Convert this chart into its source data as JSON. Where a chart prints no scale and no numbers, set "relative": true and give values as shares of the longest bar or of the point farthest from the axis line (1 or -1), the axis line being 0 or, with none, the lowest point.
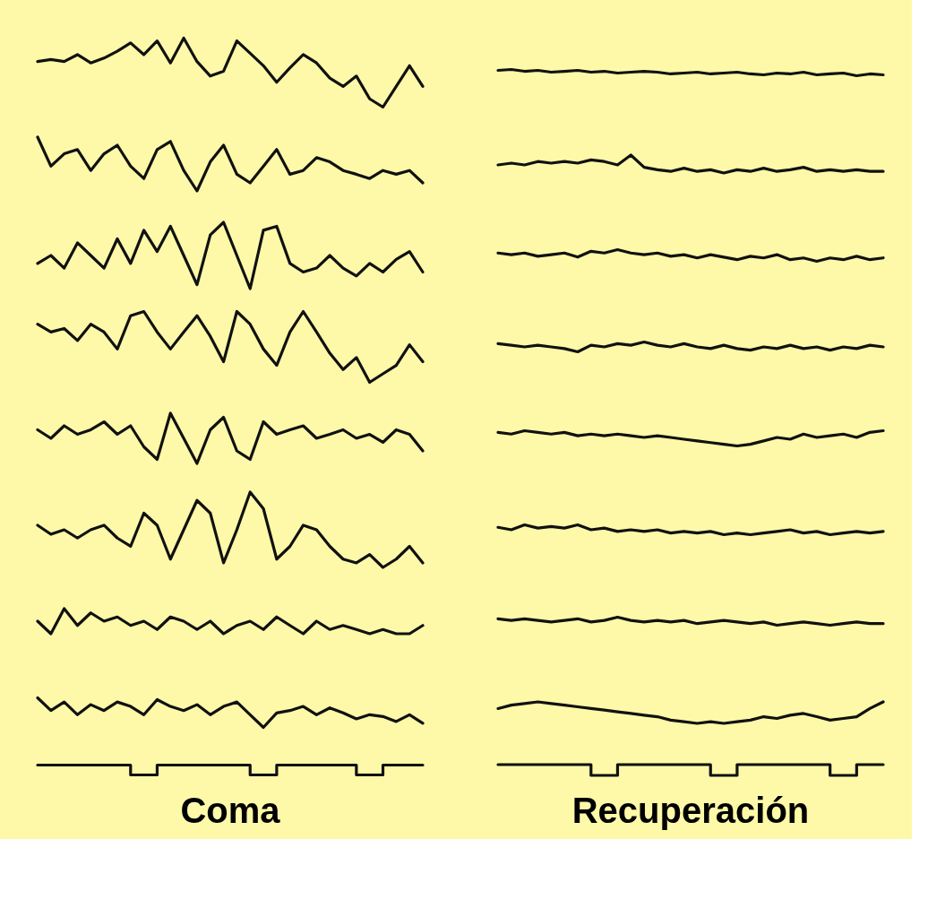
{
  "chart_data": [
    {
      "type": "line",
      "relative": true,
      "categories": [
        null,
        null,
        null,
        null,
        null,
        null,
        null,
        null,
        null,
        null,
        null,
        null,
        null,
        null,
        null,
        null,
        null,
        null,
        null,
        null,
        null,
        null,
        null,
        null,
        null,
        null,
        null,
        null,
        null,
        null
      ],
      "series": [
        {
          "color": "#111111",
          "values": [
            0.66,
            0.69,
            0.66,
            0.76,
            0.64,
            0.71,
            0.81,
            0.93,
            0.76,
            0.96,
            0.64,
            1,
            0.66,
            0.45,
            0.52,
            0.96,
            0.78,
            0.6,
            0.36,
            0.57,
            0.76,
            0.64,
            0.42,
            0.3,
            0.45,
            0.12,
            0,
            0.3,
            0.6,
            0.3
          ]
        }
      ]
    },
    {
      "type": "line",
      "relative": true,
      "categories": [
        null,
        null,
        null,
        null,
        null,
        null,
        null,
        null,
        null,
        null,
        null,
        null,
        null,
        null,
        null,
        null,
        null,
        null,
        null,
        null,
        null,
        null,
        null,
        null,
        null,
        null,
        null,
        null,
        null,
        null
      ],
      "series": [
        {
          "color": "#111111",
          "values": [
            1,
            0.46,
            0.69,
            0.77,
            0.38,
            0.69,
            0.85,
            0.46,
            0.23,
            0.77,
            0.92,
            0.38,
            0,
            0.54,
            0.85,
            0.31,
            0.15,
            0.46,
            0.77,
            0.31,
            0.38,
            0.62,
            0.54,
            0.38,
            0.31,
            0.23,
            0.38,
            0.31,
            0.38,
            0.15
          ]
        }
      ]
    },
    {
      "type": "line",
      "relative": true,
      "categories": [
        null,
        null,
        null,
        null,
        null,
        null,
        null,
        null,
        null,
        null,
        null,
        null,
        null,
        null,
        null,
        null,
        null,
        null,
        null,
        null,
        null,
        null,
        null,
        null,
        null,
        null,
        null,
        null,
        null,
        null
      ],
      "series": [
        {
          "color": "#111111",
          "values": [
            0.38,
            0.5,
            0.31,
            0.69,
            0.5,
            0.31,
            0.75,
            0.38,
            0.88,
            0.56,
            0.94,
            0.5,
            0.06,
            0.81,
            1,
            0.5,
            0,
            0.88,
            0.94,
            0.38,
            0.25,
            0.31,
            0.5,
            0.31,
            0.19,
            0.38,
            0.25,
            0.44,
            0.56,
            0.25
          ]
        }
      ]
    },
    {
      "type": "line",
      "relative": true,
      "categories": [
        null,
        null,
        null,
        null,
        null,
        null,
        null,
        null,
        null,
        null,
        null,
        null,
        null,
        null,
        null,
        null,
        null,
        null,
        null,
        null,
        null,
        null,
        null,
        null,
        null,
        null,
        null,
        null,
        null,
        null
      ],
      "series": [
        {
          "color": "#111111",
          "values": [
            0.82,
            0.71,
            0.76,
            0.59,
            0.82,
            0.71,
            0.47,
            0.94,
            1,
            0.71,
            0.47,
            0.71,
            0.94,
            0.65,
            0.29,
            1,
            0.82,
            0.47,
            0.24,
            0.71,
            1,
            0.71,
            0.41,
            0.18,
            0.35,
            0,
            0.12,
            0.24,
            0.53,
            0.29
          ]
        }
      ]
    },
    {
      "type": "line",
      "relative": true,
      "categories": [
        null,
        null,
        null,
        null,
        null,
        null,
        null,
        null,
        null,
        null,
        null,
        null,
        null,
        null,
        null,
        null,
        null,
        null,
        null,
        null,
        null,
        null,
        null,
        null,
        null,
        null,
        null,
        null,
        null,
        null
      ],
      "series": [
        {
          "color": "#111111",
          "values": [
            0.67,
            0.5,
            0.75,
            0.58,
            0.67,
            0.83,
            0.58,
            0.75,
            0.33,
            0.08,
            1,
            0.5,
            0,
            0.67,
            0.92,
            0.25,
            0.08,
            0.83,
            0.58,
            0.67,
            0.75,
            0.5,
            0.58,
            0.67,
            0.5,
            0.58,
            0.42,
            0.67,
            0.58,
            0.25
          ]
        }
      ]
    },
    {
      "type": "line",
      "relative": true,
      "categories": [
        null,
        null,
        null,
        null,
        null,
        null,
        null,
        null,
        null,
        null,
        null,
        null,
        null,
        null,
        null,
        null,
        null,
        null,
        null,
        null,
        null,
        null,
        null,
        null,
        null,
        null,
        null,
        null,
        null,
        null
      ],
      "series": [
        {
          "color": "#111111",
          "values": [
            0.56,
            0.44,
            0.5,
            0.39,
            0.5,
            0.56,
            0.39,
            0.28,
            0.72,
            0.56,
            0.11,
            0.5,
            0.89,
            0.72,
            0.06,
            0.5,
            1,
            0.78,
            0.11,
            0.28,
            0.56,
            0.5,
            0.28,
            0.11,
            0.06,
            0.17,
            0,
            0.11,
            0.28,
            0.06
          ]
        }
      ]
    },
    {
      "type": "line",
      "relative": true,
      "categories": [
        null,
        null,
        null,
        null,
        null,
        null,
        null,
        null,
        null,
        null,
        null,
        null,
        null,
        null,
        null,
        null,
        null,
        null,
        null,
        null,
        null,
        null,
        null,
        null,
        null,
        null,
        null,
        null,
        null,
        null
      ],
      "series": [
        {
          "color": "#111111",
          "values": [
            0.5,
            0,
            1,
            0.33,
            0.83,
            0.5,
            0.67,
            0.33,
            0.5,
            0.17,
            0.67,
            0.5,
            0.17,
            0.5,
            0,
            0.33,
            0.5,
            0.17,
            0.67,
            0.33,
            0,
            0.5,
            0.17,
            0.33,
            0.17,
            0,
            0.17,
            0,
            0,
            0.33
          ]
        }
      ]
    },
    {
      "type": "line",
      "relative": true,
      "categories": [
        null,
        null,
        null,
        null,
        null,
        null,
        null,
        null,
        null,
        null,
        null,
        null,
        null,
        null,
        null,
        null,
        null,
        null,
        null,
        null,
        null,
        null,
        null,
        null,
        null,
        null,
        null,
        null,
        null,
        null
      ],
      "series": [
        {
          "color": "#111111",
          "values": [
            1,
            0.57,
            0.86,
            0.43,
            0.77,
            0.57,
            0.86,
            0.71,
            0.43,
            0.94,
            0.71,
            0.57,
            0.77,
            0.43,
            0.71,
            0.86,
            0.43,
            0,
            0.49,
            0.57,
            0.71,
            0.43,
            0.66,
            0.49,
            0.29,
            0.43,
            0.37,
            0.2,
            0.43,
            0.14
          ]
        }
      ]
    },
    {
      "type": "step",
      "relative": true,
      "xlabel": "Coma",
      "categories": [
        null,
        null,
        null,
        null,
        null,
        null,
        null,
        null,
        null,
        null,
        null,
        null,
        null,
        null,
        null,
        null,
        null,
        null,
        null,
        null,
        null,
        null,
        null,
        null,
        null,
        null,
        null,
        null,
        null,
        null
      ],
      "series": [
        {
          "color": "#111111",
          "values": [
            1,
            1,
            1,
            1,
            1,
            1,
            1,
            0,
            0,
            1,
            1,
            1,
            1,
            1,
            1,
            1,
            0,
            0,
            1,
            1,
            1,
            1,
            1,
            1,
            0,
            0,
            1,
            1,
            1,
            1
          ]
        }
      ]
    },
    {
      "type": "line",
      "relative": true,
      "categories": [
        null,
        null,
        null,
        null,
        null,
        null,
        null,
        null,
        null,
        null,
        null,
        null,
        null,
        null,
        null,
        null,
        null,
        null,
        null,
        null,
        null,
        null,
        null,
        null,
        null,
        null,
        null,
        null,
        null,
        null
      ],
      "series": [
        {
          "color": "#111111",
          "values": [
            0.86,
            1,
            0.71,
            0.86,
            0.57,
            0.71,
            0.86,
            0.57,
            0.71,
            0.43,
            0.57,
            0.71,
            0.57,
            0.29,
            0.43,
            0.57,
            0.29,
            0.43,
            0.57,
            0.29,
            0.14,
            0.43,
            0.29,
            0.57,
            0.14,
            0.29,
            0.43,
            0,
            0.29,
            0.14
          ]
        }
      ]
    },
    {
      "type": "line",
      "relative": true,
      "categories": [
        null,
        null,
        null,
        null,
        null,
        null,
        null,
        null,
        null,
        null,
        null,
        null,
        null,
        null,
        null,
        null,
        null,
        null,
        null,
        null,
        null,
        null,
        null,
        null,
        null,
        null,
        null,
        null,
        null,
        null
      ],
      "series": [
        {
          "color": "#111111",
          "values": [
            0.45,
            0.55,
            0.45,
            0.64,
            0.55,
            0.64,
            0.55,
            0.73,
            0.64,
            0.45,
            1,
            0.32,
            0.18,
            0.09,
            0.27,
            0.09,
            0.18,
            0,
            0.18,
            0.09,
            0.27,
            0.09,
            0.18,
            0.32,
            0.09,
            0.18,
            0.09,
            0.18,
            0.09,
            0.09
          ]
        }
      ]
    },
    {
      "type": "line",
      "relative": true,
      "categories": [
        null,
        null,
        null,
        null,
        null,
        null,
        null,
        null,
        null,
        null,
        null,
        null,
        null,
        null,
        null,
        null,
        null,
        null,
        null,
        null,
        null,
        null,
        null,
        null,
        null,
        null,
        null,
        null,
        null,
        null
      ],
      "series": [
        {
          "color": "#111111",
          "values": [
            0.71,
            0.57,
            0.71,
            0.43,
            0.57,
            0.71,
            0.36,
            0.86,
            0.71,
            1,
            0.71,
            0.57,
            0.71,
            0.43,
            0.57,
            0.29,
            0.57,
            0.36,
            0.14,
            0.43,
            0.29,
            0.57,
            0.14,
            0.29,
            0,
            0.29,
            0.14,
            0.43,
            0.14,
            0.29
          ]
        }
      ]
    },
    {
      "type": "line",
      "relative": true,
      "categories": [
        null,
        null,
        null,
        null,
        null,
        null,
        null,
        null,
        null,
        null,
        null,
        null,
        null,
        null,
        null,
        null,
        null,
        null,
        null,
        null,
        null,
        null,
        null,
        null,
        null,
        null,
        null,
        null,
        null,
        null
      ],
      "series": [
        {
          "color": "#111111",
          "values": [
            0.83,
            0.67,
            0.5,
            0.67,
            0.5,
            0.33,
            0,
            0.67,
            0.5,
            0.83,
            0.67,
            1,
            0.67,
            0.5,
            0.83,
            0.5,
            0.33,
            0.67,
            0.33,
            0.17,
            0.5,
            0.33,
            0.67,
            0.33,
            0.5,
            0.17,
            0.5,
            0.33,
            0.67,
            0.5
          ]
        }
      ]
    },
    {
      "type": "line",
      "relative": true,
      "categories": [
        null,
        null,
        null,
        null,
        null,
        null,
        null,
        null,
        null,
        null,
        null,
        null,
        null,
        null,
        null,
        null,
        null,
        null,
        null,
        null,
        null,
        null,
        null,
        null,
        null,
        null,
        null,
        null,
        null,
        null
      ],
      "series": [
        {
          "color": "#111111",
          "values": [
            0.89,
            0.78,
            1,
            0.89,
            0.78,
            0.89,
            0.67,
            0.78,
            0.67,
            0.78,
            0.67,
            0.56,
            0.67,
            0.56,
            0.44,
            0.33,
            0.22,
            0.11,
            0,
            0.11,
            0.33,
            0.56,
            0.44,
            0.78,
            0.56,
            0.67,
            0.78,
            0.56,
            0.89,
            1
          ]
        }
      ]
    },
    {
      "type": "line",
      "relative": true,
      "categories": [
        null,
        null,
        null,
        null,
        null,
        null,
        null,
        null,
        null,
        null,
        null,
        null,
        null,
        null,
        null,
        null,
        null,
        null,
        null,
        null,
        null,
        null,
        null,
        null,
        null,
        null,
        null,
        null,
        null,
        null
      ],
      "series": [
        {
          "color": "#111111",
          "values": [
            0.75,
            0.5,
            1,
            0.67,
            0.83,
            0.67,
            1,
            0.5,
            0.67,
            0.33,
            0.5,
            0.33,
            0.5,
            0.17,
            0.33,
            0.17,
            0.33,
            0,
            0.17,
            0,
            0.17,
            0.33,
            0.5,
            0.17,
            0.33,
            0,
            0.17,
            0.33,
            0.17,
            0.33
          ]
        }
      ]
    },
    {
      "type": "line",
      "relative": true,
      "categories": [
        null,
        null,
        null,
        null,
        null,
        null,
        null,
        null,
        null,
        null,
        null,
        null,
        null,
        null,
        null,
        null,
        null,
        null,
        null,
        null,
        null,
        null,
        null,
        null,
        null,
        null,
        null,
        null,
        null,
        null
      ],
      "series": [
        {
          "color": "#111111",
          "values": [
            0.8,
            0.6,
            0.8,
            0.6,
            0.4,
            0.6,
            0.8,
            0.4,
            0.6,
            1,
            0.6,
            0.4,
            0.6,
            0.4,
            0.6,
            0.2,
            0.4,
            0.6,
            0.4,
            0.2,
            0.4,
            0,
            0.2,
            0.4,
            0.2,
            0,
            0.2,
            0.4,
            0.2,
            0.2
          ]
        }
      ]
    },
    {
      "type": "line",
      "relative": true,
      "categories": [
        null,
        null,
        null,
        null,
        null,
        null,
        null,
        null,
        null,
        null,
        null,
        null,
        null,
        null,
        null,
        null,
        null,
        null,
        null,
        null,
        null,
        null,
        null,
        null,
        null,
        null,
        null,
        null,
        null,
        null
      ],
      "series": [
        {
          "color": "#111111",
          "values": [
            0.69,
            0.85,
            0.92,
            1,
            0.92,
            0.85,
            0.77,
            0.69,
            0.62,
            0.54,
            0.46,
            0.38,
            0.31,
            0.15,
            0.08,
            0,
            0.08,
            0,
            0.08,
            0.15,
            0.31,
            0.23,
            0.38,
            0.46,
            0.31,
            0.15,
            0.23,
            0.31,
            0.69,
            1
          ]
        }
      ]
    },
    {
      "type": "step",
      "relative": true,
      "xlabel": "Recuperación",
      "categories": [
        null,
        null,
        null,
        null,
        null,
        null,
        null,
        null,
        null,
        null,
        null,
        null,
        null,
        null,
        null,
        null,
        null,
        null,
        null,
        null,
        null,
        null,
        null,
        null,
        null,
        null,
        null,
        null,
        null,
        null
      ],
      "series": [
        {
          "color": "#111111",
          "values": [
            1,
            1,
            1,
            1,
            1,
            1,
            1,
            0,
            0,
            1,
            1,
            1,
            1,
            1,
            1,
            1,
            0,
            0,
            1,
            1,
            1,
            1,
            1,
            1,
            1,
            0,
            0,
            1,
            1,
            1
          ]
        }
      ]
    }
  ]
}
